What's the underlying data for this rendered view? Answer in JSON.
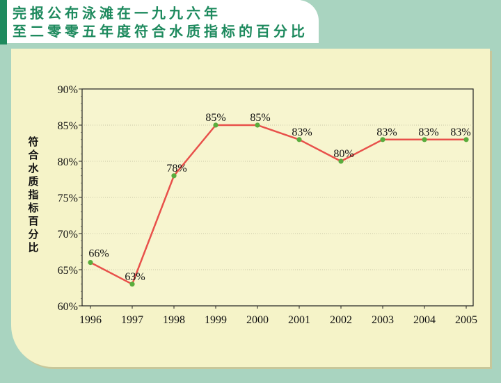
{
  "header": {
    "line1": "完报公布泳滩在一九九六年",
    "line2": "至二零零五年度符合水质指标的百分比"
  },
  "colors": {
    "background": "#a9d4c0",
    "panel": "#f5f3c8",
    "title": "#1e8a5e",
    "line": "#e8504a",
    "marker": "#5aac3c"
  },
  "chart_data": {
    "type": "line",
    "title": "",
    "xlabel": "",
    "ylabel": "符合水质指标百分比",
    "categories": [
      "1996",
      "1997",
      "1998",
      "1999",
      "2000",
      "2001",
      "2002",
      "2003",
      "2004",
      "2005"
    ],
    "series": [
      {
        "values": [
          66,
          63,
          78,
          85,
          85,
          83,
          80,
          83,
          83,
          83
        ]
      }
    ],
    "data_labels": [
      "66%",
      "63%",
      "78%",
      "85%",
      "85%",
      "83%",
      "80%",
      "83%",
      "83%",
      "83%"
    ],
    "yticks": [
      "60%",
      "65%",
      "70%",
      "75%",
      "80%",
      "85%",
      "90%"
    ],
    "ylim": [
      60,
      90
    ],
    "grid": true
  }
}
